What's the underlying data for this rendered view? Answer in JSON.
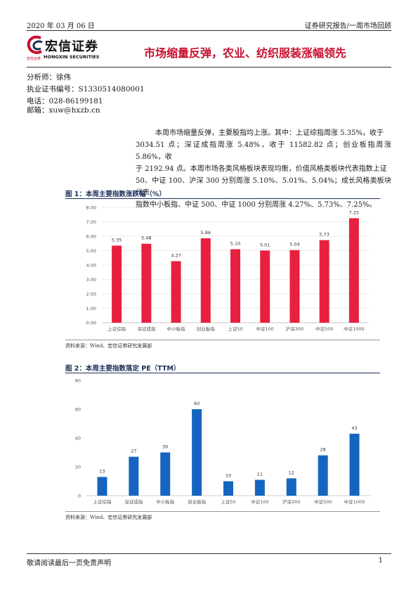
{
  "header": {
    "date": "2020 年 03 月 06 日",
    "report_type": "证券研究报告/一周市场回顾"
  },
  "logo": {
    "name_cn": "宏信证券",
    "name_en": "HONGXIN SECURITIES",
    "mini": "宏信证券"
  },
  "title": "市场缩量反弹，农业、纺织服装涨幅领先",
  "analyst": {
    "name": "分析师：徐伟",
    "license": "执业证书编号：S1330514080001",
    "phone": "电话：028-86199181",
    "email": "邮箱：xuw@hxzb.cn"
  },
  "summary_lines": [
    "本周市场缩量反弹，主要股指均上涨。其中：上证综指周涨 5.35%，收于",
    "3034.51 点；深证成指周涨 5.48%，收于 11582.82 点；创业板指周涨 5.86%，收",
    "于 2192.94 点。本周市场各类风格板块表现均衡，价值风格类板块代表指数上证",
    "50、中证 100、沪深 300 分别周涨 5.10%、5.01%、5.04%；成长风格类板块代表",
    "指数中小板指、中证 500、中证 1000 分别周涨 4.27%、5.73%、7.25%。"
  ],
  "figure1": {
    "title": "图 1：本周主要指数涨跌幅（%）",
    "source": "资料来源：Wind、宏信证券研究发展部",
    "color": "#e8203f"
  },
  "figure2": {
    "title": "图 2：本周主要指数落定 PE（TTM）",
    "source": "资料来源：Wind、宏信证券研究发展部",
    "color": "#1565c0"
  },
  "chart_data": [
    {
      "type": "bar",
      "categories": [
        "上证综指",
        "深证成指",
        "中小板指",
        "创业板指",
        "上证50",
        "中证100",
        "沪深300",
        "中证500",
        "中证1000"
      ],
      "values": [
        5.35,
        5.48,
        4.27,
        5.86,
        5.1,
        5.01,
        5.04,
        5.73,
        7.25
      ],
      "value_labels": [
        "5.35",
        "5.48",
        "4.27",
        "5.86",
        "5.10",
        "5.01",
        "5.04",
        "5.73",
        "7.25"
      ],
      "ylim": [
        0,
        8
      ],
      "yticks": [
        "0.00",
        "1.00",
        "2.00",
        "3.00",
        "4.00",
        "5.00",
        "6.00",
        "7.00",
        "8.00"
      ],
      "title": "",
      "xlabel": "",
      "ylabel": ""
    },
    {
      "type": "bar",
      "categories": [
        "上证综指",
        "深证成指",
        "中小板指",
        "创业板指",
        "上证50",
        "中证100",
        "沪深300",
        "中证500",
        "中证1000"
      ],
      "values": [
        13,
        27,
        30,
        60,
        10,
        11,
        12,
        28,
        43
      ],
      "value_labels": [
        "13",
        "27",
        "30",
        "60",
        "10",
        "11",
        "12",
        "28",
        "43"
      ],
      "ylim": [
        0,
        80
      ],
      "yticks": [
        "0",
        "20",
        "40",
        "60",
        "80"
      ],
      "title": "",
      "xlabel": "",
      "ylabel": ""
    }
  ],
  "footer": {
    "disclaimer": "敬请阅读最后一页免责声明",
    "page": "1"
  }
}
